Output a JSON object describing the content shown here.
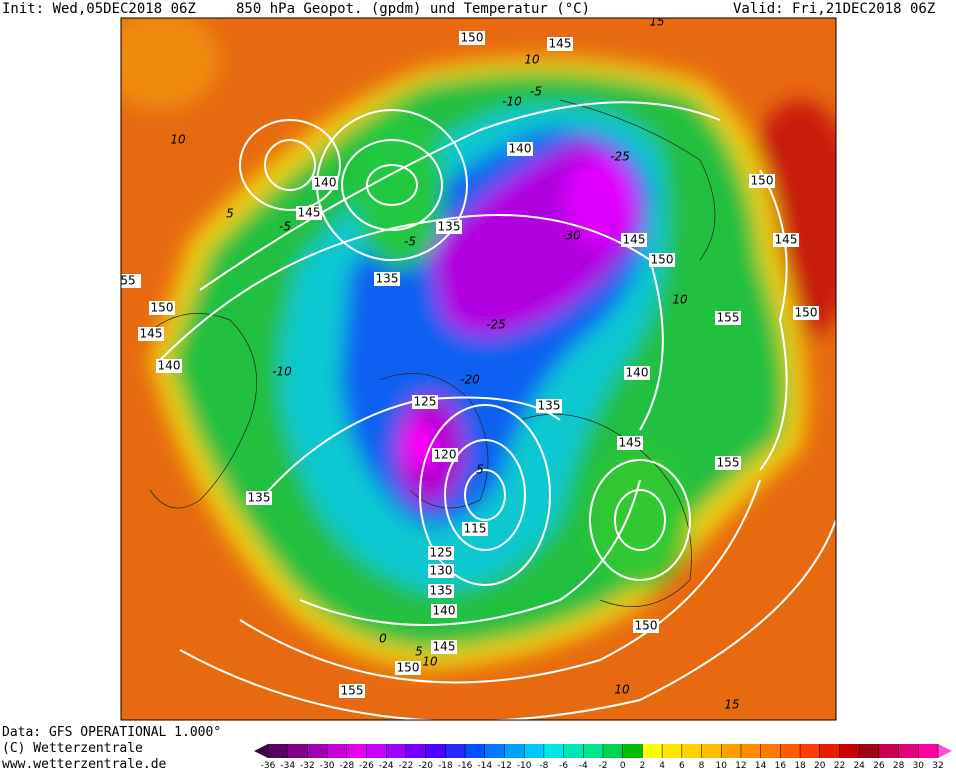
{
  "header": {
    "init": "Init: Wed,05DEC2018 06Z",
    "title": "850 hPa Geopot. (gpdm) und Temperatur (°C)",
    "valid": "Valid: Fri,21DEC2018 06Z"
  },
  "map": {
    "height_labels": [
      150,
      145,
      140,
      145,
      135,
      135,
      150,
      145,
      140,
      55,
      140,
      145,
      150,
      150,
      145,
      150,
      155,
      140,
      135,
      125,
      120,
      115,
      125,
      130,
      135,
      140,
      145,
      150,
      155,
      150,
      155,
      145,
      135
    ],
    "temperature_labels": [
      -25,
      -30,
      -25,
      -10,
      -5,
      10,
      15,
      10,
      5,
      -5,
      -10,
      0,
      5,
      10,
      -20,
      5,
      10,
      15,
      -5,
      10
    ]
  },
  "legend": {
    "ticks": [
      -36,
      -34,
      -32,
      -30,
      -28,
      -26,
      -24,
      -22,
      -20,
      -18,
      -16,
      -14,
      -12,
      -10,
      -8,
      -6,
      -4,
      -2,
      0,
      2,
      4,
      6,
      8,
      10,
      12,
      14,
      16,
      18,
      20,
      22,
      24,
      26,
      28,
      30,
      32
    ]
  },
  "footer": {
    "lines": [
      "Data: GFS OPERATIONAL 1.000°",
      "(C) Wetterzentrale",
      "www.wetterzentrale.de"
    ]
  }
}
